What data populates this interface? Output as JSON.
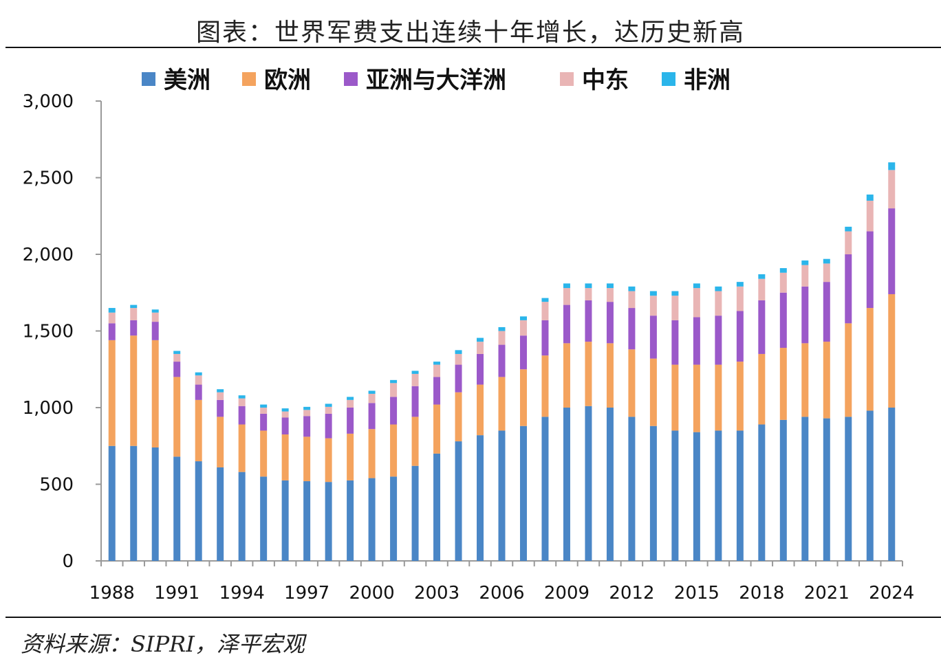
{
  "title": "图表：世界军费支出连续十年增长，达历史新高",
  "source": "资料来源：SIPRI，泽平宏观",
  "chart_data": {
    "type": "bar",
    "stacked": true,
    "legend_position": "top",
    "grid": false,
    "ylim": [
      0,
      3000
    ],
    "yticks": [
      0,
      500,
      1000,
      1500,
      2000,
      2500,
      3000
    ],
    "ytick_labels": [
      "0",
      "500",
      "1,000",
      "1,500",
      "2,000",
      "2,500",
      "3,000"
    ],
    "xtick_labels": [
      "1988",
      "1991",
      "1994",
      "1997",
      "2000",
      "2003",
      "2006",
      "2009",
      "2012",
      "2015",
      "2018",
      "2021",
      "2024"
    ],
    "categories": [
      "1988",
      "1989",
      "1990",
      "1991",
      "1992",
      "1993",
      "1994",
      "1995",
      "1996",
      "1997",
      "1998",
      "1999",
      "2000",
      "2001",
      "2002",
      "2003",
      "2004",
      "2005",
      "2006",
      "2007",
      "2008",
      "2009",
      "2010",
      "2011",
      "2012",
      "2013",
      "2014",
      "2015",
      "2016",
      "2017",
      "2018",
      "2019",
      "2020",
      "2021",
      "2022",
      "2023",
      "2024"
    ],
    "series": [
      {
        "name": "美洲",
        "color": "#4a86c6",
        "values": [
          750,
          750,
          740,
          680,
          650,
          610,
          580,
          550,
          525,
          520,
          515,
          525,
          540,
          550,
          620,
          700,
          780,
          820,
          850,
          880,
          940,
          1000,
          1010,
          1000,
          940,
          880,
          850,
          840,
          850,
          850,
          890,
          920,
          940,
          930,
          940,
          980,
          1000
        ]
      },
      {
        "name": "欧洲",
        "color": "#f4a35e",
        "values": [
          690,
          720,
          700,
          520,
          400,
          330,
          310,
          300,
          300,
          290,
          285,
          305,
          320,
          340,
          320,
          320,
          320,
          330,
          350,
          370,
          400,
          420,
          420,
          420,
          440,
          440,
          430,
          440,
          430,
          450,
          460,
          470,
          480,
          500,
          610,
          670,
          740
        ]
      },
      {
        "name": "亚洲与大洋洲",
        "color": "#9b59c9",
        "values": [
          110,
          100,
          120,
          100,
          100,
          110,
          120,
          110,
          110,
          135,
          160,
          170,
          170,
          180,
          200,
          180,
          180,
          200,
          210,
          220,
          230,
          250,
          270,
          270,
          270,
          280,
          290,
          310,
          320,
          330,
          350,
          360,
          370,
          390,
          450,
          500,
          560
        ]
      },
      {
        "name": "中东",
        "color": "#e9b5b5",
        "values": [
          70,
          80,
          60,
          50,
          60,
          50,
          50,
          40,
          40,
          40,
          45,
          50,
          60,
          90,
          80,
          80,
          70,
          80,
          90,
          100,
          120,
          110,
          80,
          90,
          110,
          130,
          160,
          190,
          160,
          160,
          140,
          130,
          140,
          120,
          150,
          200,
          250
        ]
      },
      {
        "name": "非洲",
        "color": "#2bb5ea",
        "values": [
          30,
          20,
          20,
          20,
          20,
          20,
          20,
          20,
          20,
          20,
          20,
          20,
          20,
          20,
          20,
          20,
          25,
          25,
          25,
          25,
          25,
          30,
          30,
          30,
          30,
          30,
          30,
          30,
          30,
          30,
          30,
          30,
          30,
          30,
          30,
          40,
          50
        ]
      }
    ]
  }
}
